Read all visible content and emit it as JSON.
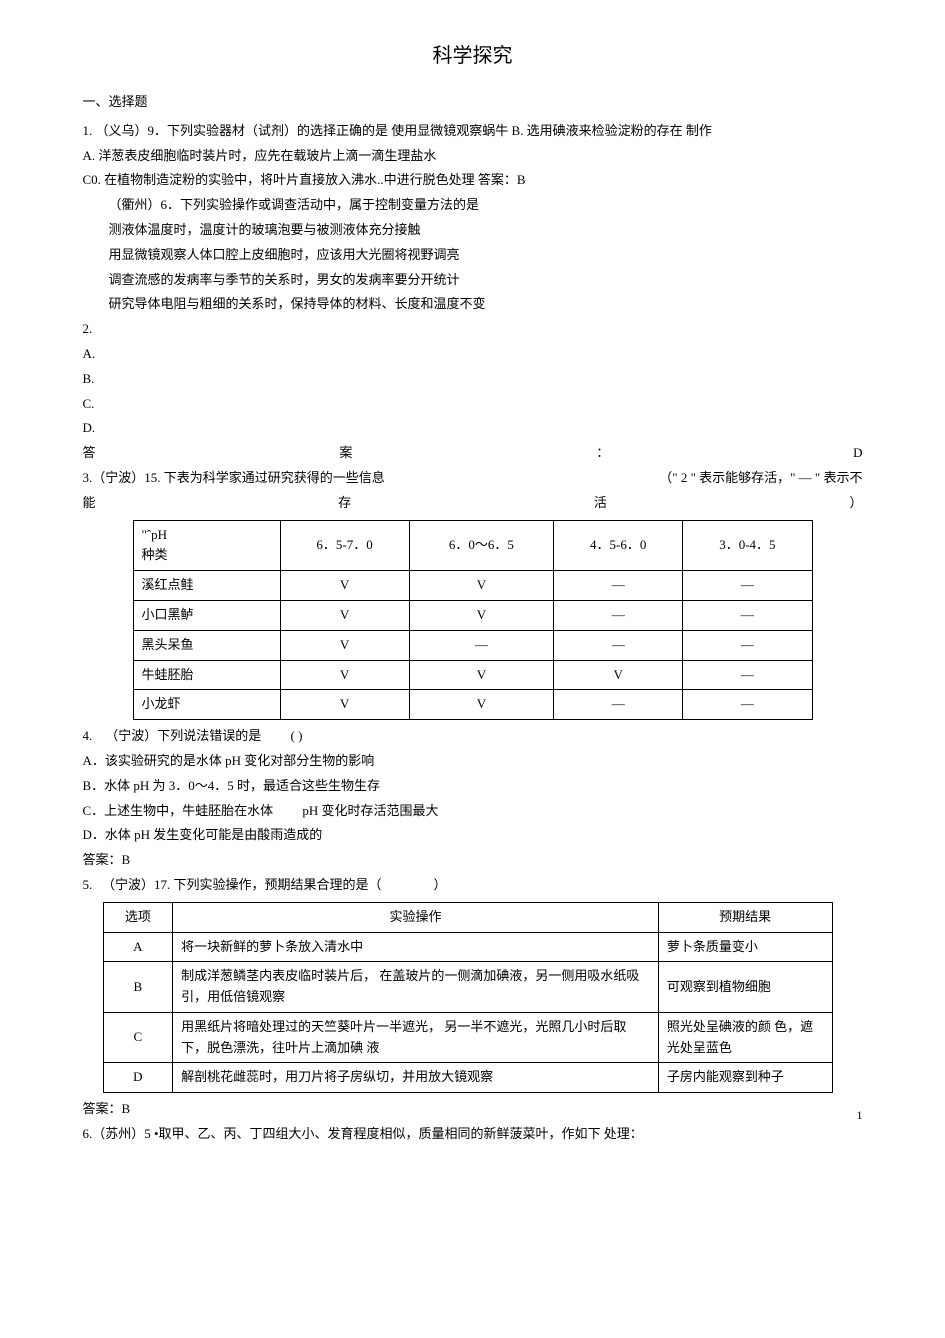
{
  "title": "科学探究",
  "section1": "一、选择题",
  "q1": {
    "num": "1.",
    "stem": "（义乌）9．下列实验器材（试剂）的选择正确的是  使用显微镜观察蜗牛 B. 选用碘液来检验淀粉的存在  制作",
    "A": "A.  洋葱表皮细胞临时装片时，应先在载玻片上滴一滴生理盐水",
    "C0": "C0.  在植物制造淀粉的实验中，将叶片直接放入沸水..中进行脱色处理  答案：B",
    "sub1": "（衢州）6．下列实验操作或调查活动中，属于控制变量方法的是",
    "sub2": "测液体温度时，温度计的玻璃泡要与被测液体充分接触",
    "sub3": "用显微镜观察人体口腔上皮细胞时，应该用大光圈将视野调亮",
    "sub4": "调查流感的发病率与季节的关系时，男女的发病率要分开统计",
    "sub5": "研究导体电阻与粗细的关系时，保持导体的材料、长度和温度不变"
  },
  "q2": {
    "num": "2.",
    "A": "A.",
    "B": "B.",
    "C": "C.",
    "D": "D."
  },
  "q2ans": {
    "l": "答",
    "m": "案",
    "c": "：",
    "r": "D"
  },
  "q3": {
    "line1a": "3.（宁波）15. 下表为科学家通过研究获得的一些信息",
    "line1b": "（\" 2 \" 表示能够存活，\" — \" 表示不",
    "line2a": "能",
    "line2b": "存",
    "line2c": "活",
    "line2d": "）"
  },
  "table1": {
    "header": [
      "\"ˆpH\n种类",
      "6．5-7．0",
      "6．0〜6．5",
      "4．5-6．0",
      "3．0-4．5"
    ],
    "rows": [
      [
        "溪红点鲑",
        "V",
        "V",
        "—",
        "—"
      ],
      [
        "小口黑鲈",
        "V",
        "V",
        "—",
        "—"
      ],
      [
        "黑头呆鱼",
        "V",
        "—",
        "—",
        "—"
      ],
      [
        "牛蛙胚胎",
        "V",
        "V",
        "V",
        "—"
      ],
      [
        "小龙虾",
        "V",
        "V",
        "—",
        "—"
      ]
    ]
  },
  "q4": {
    "num": "4.",
    "stem": "（宁波）下列说法错误的是",
    "paren": "(        )",
    "A": "A．该实验研究的是水体 pH 变化对部分生物的影响",
    "B": "B．水体 pH 为 3．0〜4．5 时，最适合这些生物生存",
    "C1": "C．上述生物中，牛蛙胚胎在水体",
    "C2": "pH 变化时存活范围最大",
    "D": "D．水体 pH 发生变化可能是由酸雨造成的",
    "ans": "答案：B"
  },
  "q5": {
    "num": "5.",
    "stem": "（宁波）17. 下列实验操作，预期结果合理的是（",
    "paren": "）"
  },
  "table2": {
    "header": [
      "选项",
      "实验操作",
      "预期结果"
    ],
    "rows": [
      {
        "opt": "A",
        "op": "将一块新鲜的萝卜条放入清水中",
        "res": "萝卜条质量变小"
      },
      {
        "opt": "B",
        "op": "制成洋葱鳞茎内表皮临时装片后，        在盖玻片的一侧滴加碘液，另一侧用吸水纸吸引，用低倍镜观察",
        "res": "可观察到植物细胞"
      },
      {
        "opt": "C",
        "op": "用黑纸片将暗处理过的天竺葵叶片一半遮光，             另一半不遮光，光照几小时后取下，脱色漂洗，往叶片上滴加碘  液",
        "res": "照光处呈碘液的颜 色，遮光处呈蓝色"
      },
      {
        "opt": "D",
        "op": "解剖桃花雌蕊时，用刀片将子房纵切，并用放大镜观察",
        "res": "子房内能观察到种子"
      }
    ]
  },
  "q5ans": "答案：B",
  "q6": "6.（苏州）5 •取甲、乙、丙、丁四组大小、发育程度相似，质量相同的新鲜菠菜叶，作如下 处理：",
  "pageNum": "1"
}
